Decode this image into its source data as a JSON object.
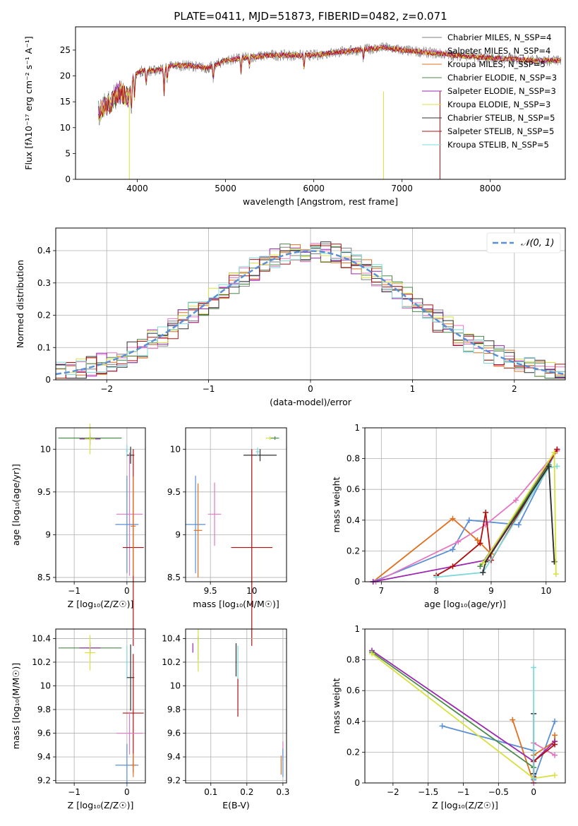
{
  "figure_title": "PLATE=0411, MJD=51873, FIBERID=0482, z=0.071",
  "series_colors": [
    "#808080",
    "#e377c2",
    "#e07020",
    "#4a8a4a",
    "#9b27b0",
    "#d8e040",
    "#303030",
    "#b01010",
    "#7fd8d8"
  ],
  "chart_data": [
    {
      "id": "spectrum",
      "type": "line",
      "title": "PLATE=0411, MJD=51873, FIBERID=0482, z=0.071",
      "xlabel": "wavelength [Angstrom, rest frame]",
      "ylabel": "Flux [fλ10⁻¹⁷ erg cm⁻² s⁻¹ A⁻¹]",
      "xlim": [
        3300,
        8850
      ],
      "ylim": [
        0,
        29.5
      ],
      "xticks": [
        4000,
        5000,
        6000,
        7000,
        8000
      ],
      "yticks": [
        0,
        5,
        10,
        15,
        20,
        25
      ],
      "grid": false,
      "legend": "upper-right",
      "legend_entries": [
        "Chabrier MILES, N_SSP=4",
        "Salpeter MILES, N_SSP=4",
        "Kroupa MILES, N_SSP=5",
        "Chabrier ELODIE, N_SSP=3",
        "Salpeter ELODIE, N_SSP=3",
        "Kroupa ELODIE, N_SSP=3",
        "Chabrier STELIB, N_SSP=5",
        "Salpeter STELIB, N_SSP=5",
        "Kroupa STELIB, N_SSP=5"
      ],
      "continuum": [
        [
          3560,
          13
        ],
        [
          3700,
          15
        ],
        [
          3800,
          17
        ],
        [
          3900,
          16
        ],
        [
          3950,
          20
        ],
        [
          4050,
          21
        ],
        [
          4200,
          21
        ],
        [
          4400,
          22
        ],
        [
          4600,
          22
        ],
        [
          4800,
          21.5
        ],
        [
          5000,
          23
        ],
        [
          5200,
          23.5
        ],
        [
          5500,
          24
        ],
        [
          5800,
          24
        ],
        [
          6000,
          24
        ],
        [
          6200,
          24.5
        ],
        [
          6500,
          25
        ],
        [
          6800,
          25.5
        ],
        [
          7000,
          25
        ],
        [
          7300,
          24.5
        ],
        [
          7600,
          24
        ],
        [
          8000,
          23.5
        ],
        [
          8500,
          23
        ],
        [
          8800,
          23
        ]
      ]
    },
    {
      "id": "residuals",
      "type": "histogram",
      "xlabel": "(data-model)/error",
      "ylabel": "Normed distribution",
      "xlim": [
        -2.5,
        2.5
      ],
      "ylim": [
        0,
        0.47
      ],
      "xticks": [
        -2,
        -1,
        0,
        1,
        2
      ],
      "yticks": [
        0.0,
        0.1,
        0.2,
        0.3,
        0.4
      ],
      "grid": true,
      "legend": "upper-right",
      "normal_label": "𝒩(0, 1)",
      "normal_color": "#5b8fd6"
    },
    {
      "id": "age_vs_Z",
      "type": "errorbar",
      "xlabel": "Z [log₁₀(Z/Z☉)]",
      "ylabel": "age  [log₁₀(age/yr)]",
      "xlim": [
        -1.35,
        0.35
      ],
      "ylim": [
        8.45,
        10.25
      ],
      "xticks": [
        -1,
        0
      ],
      "yticks": [
        8.5,
        9.0,
        9.5,
        10.0
      ],
      "points": [
        {
          "c": "#4a8a4a",
          "x": -0.7,
          "y": 10.13,
          "xerr": 0.6,
          "yerr": 0.03
        },
        {
          "c": "#9b27b0",
          "x": -0.7,
          "y": 10.12,
          "xerr": 0.2,
          "yerr": 0.07
        },
        {
          "c": "#d8e040",
          "x": -0.7,
          "y": 10.12,
          "xerr": 0.1,
          "yerr": 0.18
        },
        {
          "c": "#7fd8d8",
          "x": 0.0,
          "y": 9.98,
          "xerr": 0.02,
          "yerr": 0.07
        },
        {
          "c": "#303030",
          "x": 0.07,
          "y": 9.93,
          "xerr": 0.07,
          "yerr": 0.1
        },
        {
          "c": "#e377c2",
          "x": 0.05,
          "y": 9.24,
          "xerr": 0.25,
          "yerr": 0.72
        },
        {
          "c": "#5b8fd6",
          "x": 0.0,
          "y": 9.12,
          "xerr": 0.22,
          "yerr": 0.57
        },
        {
          "c": "#b01010",
          "x": 0.12,
          "y": 8.85,
          "xerr": 0.2,
          "yerr": 1.15
        },
        {
          "c": "#e07020",
          "x": 0.12,
          "y": 9.1,
          "xerr": 0.05,
          "yerr": 0.58
        }
      ]
    },
    {
      "id": "age_vs_mass",
      "type": "errorbar",
      "xlabel": "mass [log₁₀(M/M☉)]",
      "xlim": [
        9.2,
        10.42
      ],
      "ylim": [
        8.45,
        10.25
      ],
      "xticks": [
        9.5,
        10.0
      ],
      "yticks": [
        8.5,
        9.0,
        9.5,
        10.0
      ],
      "points": [
        {
          "c": "#d8e040",
          "x": 10.22,
          "y": 10.13,
          "xerr": 0.05,
          "yerr": 0.02
        },
        {
          "c": "#4a8a4a",
          "x": 10.28,
          "y": 10.13,
          "xerr": 0.05,
          "yerr": 0.02
        },
        {
          "c": "#303030",
          "x": 10.1,
          "y": 9.93,
          "xerr": 0.2,
          "yerr": 0.07
        },
        {
          "c": "#7fd8d8",
          "x": 10.07,
          "y": 9.97,
          "xerr": 0.02,
          "yerr": 0.05
        },
        {
          "c": "#e377c2",
          "x": 9.55,
          "y": 9.24,
          "xerr": 0.08,
          "yerr": 0.37
        },
        {
          "c": "#5b8fd6",
          "x": 9.32,
          "y": 9.12,
          "xerr": 0.12,
          "yerr": 0.57
        },
        {
          "c": "#b01010",
          "x": 10.0,
          "y": 8.85,
          "xerr": 0.25,
          "yerr": 1.15
        },
        {
          "c": "#e07020",
          "x": 9.35,
          "y": 9.05,
          "xerr": 0.05,
          "yerr": 0.55
        }
      ]
    },
    {
      "id": "mass_weight_vs_age",
      "type": "line",
      "xlabel": "age  [log₁₀(age/yr)]",
      "ylabel": "mass weight",
      "xlim": [
        6.7,
        10.35
      ],
      "ylim": [
        0,
        1.0
      ],
      "xticks": [
        7,
        8,
        9,
        10
      ],
      "yticks": [
        0.0,
        0.2,
        0.4,
        0.6,
        0.8,
        1.0
      ],
      "grid": true,
      "series": [
        {
          "c": "#e07020",
          "x": [
            6.85,
            8.3,
            8.75,
            9.0,
            10.2
          ],
          "y": [
            0.0,
            0.41,
            0.27,
            0.18,
            0.85
          ]
        },
        {
          "c": "#5b8fd6",
          "x": [
            6.85,
            8.3,
            8.6,
            9.5,
            10.2
          ],
          "y": [
            0.0,
            0.21,
            0.4,
            0.37,
            0.86
          ]
        },
        {
          "c": "#e377c2",
          "x": [
            6.9,
            8.4,
            8.9,
            9.45,
            10.2
          ],
          "y": [
            0.0,
            0.26,
            0.37,
            0.53,
            0.85
          ]
        },
        {
          "c": "#9b27b0",
          "x": [
            6.85,
            8.9,
            10.2
          ],
          "y": [
            0.0,
            0.14,
            0.86
          ]
        },
        {
          "c": "#b01010",
          "x": [
            8.0,
            8.3,
            8.8,
            8.9,
            9.0,
            10.2
          ],
          "y": [
            0.04,
            0.1,
            0.25,
            0.45,
            0.14,
            0.86
          ]
        },
        {
          "c": "#7fd8d8",
          "x": [
            8.0,
            8.85,
            10.05,
            10.2
          ],
          "y": [
            0.03,
            0.06,
            0.74,
            0.75
          ]
        },
        {
          "c": "#4a8a4a",
          "x": [
            8.8,
            10.05,
            10.15
          ],
          "y": [
            0.1,
            0.76,
            0.13
          ]
        },
        {
          "c": "#303030",
          "x": [
            8.85,
            8.9,
            10.05,
            10.15
          ],
          "y": [
            0.06,
            0.13,
            0.75,
            0.13
          ]
        },
        {
          "c": "#d8e040",
          "x": [
            8.85,
            10.15,
            10.18
          ],
          "y": [
            0.12,
            0.84,
            0.05
          ]
        }
      ]
    },
    {
      "id": "mass_vs_Z",
      "type": "errorbar",
      "xlabel": "Z [log₁₀(Z/Z☉)]",
      "ylabel": "mass [log₁₀(M/M☉)]",
      "xlim": [
        -1.35,
        0.35
      ],
      "ylim": [
        9.18,
        10.48
      ],
      "xticks": [
        -1,
        0
      ],
      "yticks": [
        9.2,
        9.4,
        9.6,
        9.8,
        10.0,
        10.2,
        10.4
      ],
      "points": [
        {
          "c": "#4a8a4a",
          "x": -0.7,
          "y": 10.32,
          "xerr": 0.6,
          "yerr": 0.03
        },
        {
          "c": "#9b27b0",
          "x": -0.7,
          "y": 10.32,
          "xerr": 0.2,
          "yerr": 0.05
        },
        {
          "c": "#d8e040",
          "x": -0.7,
          "y": 10.28,
          "xerr": 0.1,
          "yerr": 0.15
        },
        {
          "c": "#7fd8d8",
          "x": 0.0,
          "y": 10.2,
          "xerr": 0.02,
          "yerr": 0.14
        },
        {
          "c": "#303030",
          "x": 0.07,
          "y": 10.07,
          "xerr": 0.07,
          "yerr": 0.28
        },
        {
          "c": "#b01010",
          "x": 0.12,
          "y": 9.77,
          "xerr": 0.2,
          "yerr": 0.5
        },
        {
          "c": "#e377c2",
          "x": 0.05,
          "y": 9.6,
          "xerr": 0.25,
          "yerr": 0.18
        },
        {
          "c": "#5b8fd6",
          "x": 0.0,
          "y": 9.33,
          "xerr": 0.22,
          "yerr": 0.18
        },
        {
          "c": "#e07020",
          "x": 0.12,
          "y": 9.33,
          "xerr": 0.05,
          "yerr": 0.1
        }
      ]
    },
    {
      "id": "mass_vs_ebv",
      "type": "errorbar",
      "xlabel": "E(B-V)",
      "xlim": [
        0.03,
        0.31
      ],
      "ylim": [
        9.18,
        10.48
      ],
      "xticks": [
        0.1,
        0.2,
        0.3
      ],
      "yticks": [
        9.2,
        9.4,
        9.6,
        9.8,
        10.0,
        10.2,
        10.4
      ],
      "points": [
        {
          "c": "#4a8a4a",
          "x": 0.065,
          "y": 10.32,
          "xerr": 0,
          "yerr": 0.1
        },
        {
          "c": "#9b27b0",
          "x": 0.05,
          "y": 10.32,
          "xerr": 0,
          "yerr": 0.04
        },
        {
          "c": "#d8e040",
          "x": 0.065,
          "y": 10.3,
          "xerr": 0,
          "yerr": 0.18
        },
        {
          "c": "#303030",
          "x": 0.17,
          "y": 10.22,
          "xerr": 0,
          "yerr": 0.14
        },
        {
          "c": "#7fd8d8",
          "x": 0.175,
          "y": 10.2,
          "xerr": 0,
          "yerr": 0.14
        },
        {
          "c": "#b01010",
          "x": 0.175,
          "y": 9.9,
          "xerr": 0,
          "yerr": 0.16
        },
        {
          "c": "#e07020",
          "x": 0.295,
          "y": 9.33,
          "xerr": 0,
          "yerr": 0.08
        },
        {
          "c": "#e377c2",
          "x": 0.3,
          "y": 9.45,
          "xerr": 0,
          "yerr": 0.08
        },
        {
          "c": "#5b8fd6",
          "x": 0.3,
          "y": 9.35,
          "xerr": 0,
          "yerr": 0.12
        }
      ]
    },
    {
      "id": "mass_weight_vs_Z",
      "type": "line",
      "xlabel": "Z [log₁₀(Z/Z☉)]",
      "ylabel": "mass weight",
      "xlim": [
        -2.4,
        0.45
      ],
      "ylim": [
        0,
        1.0
      ],
      "xticks": [
        -2.0,
        -1.5,
        -1.0,
        -0.5,
        0.0
      ],
      "yticks": [
        0.0,
        0.2,
        0.4,
        0.6,
        0.8,
        1.0
      ],
      "grid": true,
      "series": [
        {
          "c": "#5b8fd6",
          "x": [
            -1.3,
            0.0,
            0.0,
            0.3
          ],
          "y": [
            0.37,
            0.21,
            0.02,
            0.4
          ]
        },
        {
          "c": "#e07020",
          "x": [
            -0.3,
            0.0,
            0.0,
            0.3,
            0.3
          ],
          "y": [
            0.41,
            0.0,
            0.18,
            0.27,
            0.31
          ]
        },
        {
          "c": "#e377c2",
          "x": [
            0.0,
            0.0,
            0.3
          ],
          "y": [
            0.0,
            0.26,
            0.18
          ]
        },
        {
          "c": "#9b27b0",
          "x": [
            -2.3,
            0.0,
            0.3
          ],
          "y": [
            0.86,
            0.14,
            0.27
          ]
        },
        {
          "c": "#b01010",
          "x": [
            0.0,
            0.0,
            0.3
          ],
          "y": [
            0.04,
            0.14,
            0.25
          ]
        },
        {
          "c": "#4a8a4a",
          "x": [
            -2.3,
            0.0
          ],
          "y": [
            0.85,
            0.1
          ]
        },
        {
          "c": "#d8e040",
          "x": [
            -2.3,
            0.0,
            0.3
          ],
          "y": [
            0.84,
            0.03,
            0.05
          ]
        },
        {
          "c": "#303030",
          "x": [
            0.0,
            0.0
          ],
          "y": [
            0.06,
            0.45
          ]
        },
        {
          "c": "#7fd8d8",
          "x": [
            0.0,
            0.0
          ],
          "y": [
            0.03,
            0.75
          ]
        }
      ]
    }
  ]
}
